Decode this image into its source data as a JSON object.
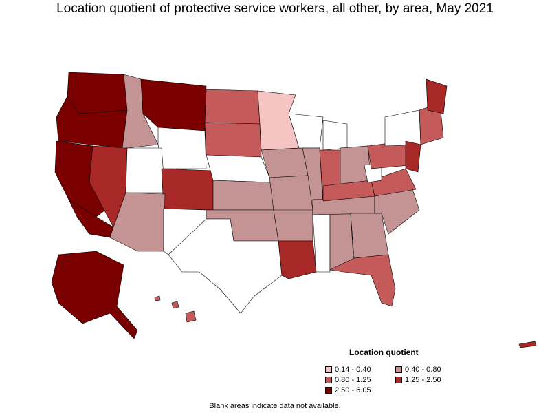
{
  "title": "Location quotient of protective service workers, all other, by area, May 2021",
  "legend": {
    "title": "Location quotient",
    "items": [
      {
        "label": "0.14 - 0.40",
        "color": "#f7c4c4"
      },
      {
        "label": "0.40 - 0.80",
        "color": "#c49494"
      },
      {
        "label": "0.80 - 1.25",
        "color": "#c45a5a"
      },
      {
        "label": "1.25 - 2.50",
        "color": "#a82828"
      },
      {
        "label": "2.50 - 6.05",
        "color": "#7a0000"
      }
    ]
  },
  "note": "Blank areas indicate data not available.",
  "map_colors": {
    "blank": "#ffffff",
    "border": "#000000"
  }
}
